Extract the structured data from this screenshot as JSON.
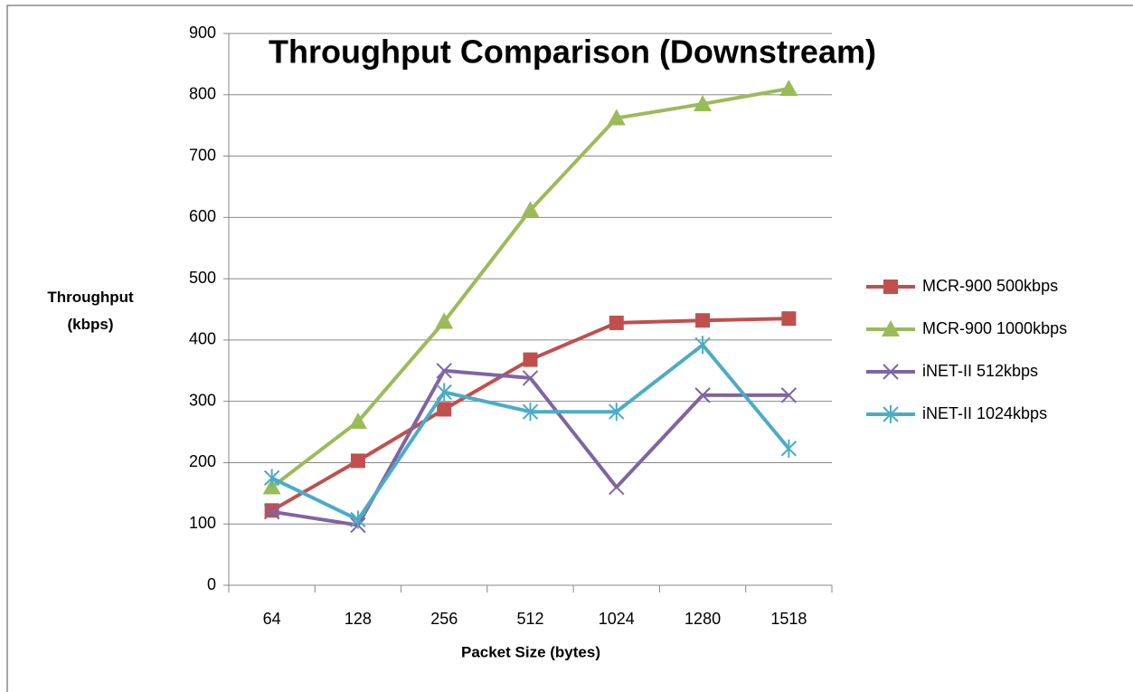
{
  "chart_data": {
    "type": "line",
    "title": "Throughput Comparison (Downstream)",
    "x_label": "Packet Size (bytes)",
    "y_label": "Throughput (kbps)",
    "categories": [
      "64",
      "128",
      "256",
      "512",
      "1024",
      "1280",
      "1518"
    ],
    "series": [
      {
        "name": "MCR-900 500kbps",
        "color": "#c0504d",
        "marker": "square",
        "values": [
          122,
          203,
          287,
          368,
          428,
          432,
          435
        ]
      },
      {
        "name": "MCR-900 1000kbps",
        "color": "#9bbb59",
        "marker": "triangle",
        "values": [
          160,
          267,
          430,
          612,
          762,
          785,
          810
        ]
      },
      {
        "name": "iNET-II 512kbps",
        "color": "#8064a2",
        "marker": "x",
        "values": [
          120,
          98,
          350,
          338,
          160,
          310,
          310
        ]
      },
      {
        "name": "iNET-II 1024kbps",
        "color": "#4bacc6",
        "marker": "star",
        "values": [
          175,
          107,
          315,
          283,
          283,
          392,
          223
        ]
      }
    ],
    "ylim": [
      0,
      900
    ],
    "yticks": [
      0,
      100,
      200,
      300,
      400,
      500,
      600,
      700,
      800,
      900
    ],
    "grid": true,
    "legend": "right"
  }
}
